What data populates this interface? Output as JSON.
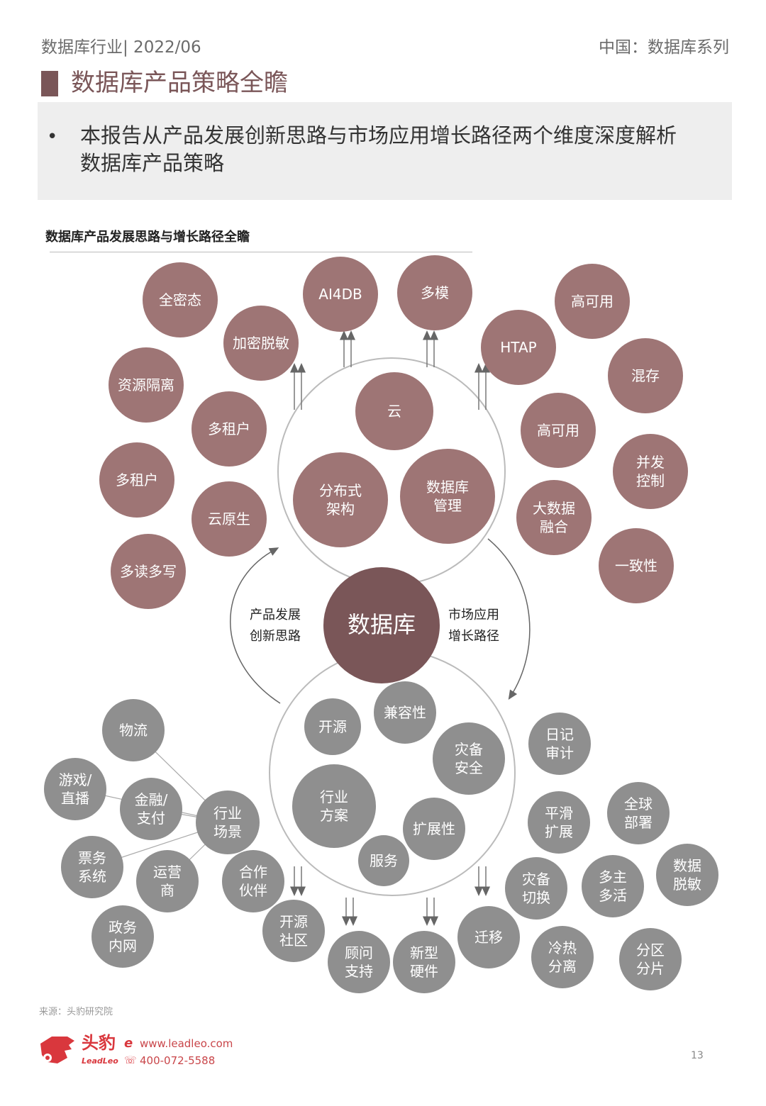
{
  "header": {
    "left": "数据库行业| 2022/06",
    "right": "中国：数据库系列"
  },
  "title": "数据库产品策略全瞻",
  "summary": {
    "bullet": "•",
    "text": "本报告从产品发展创新思路与市场应用增长路径两个维度深度解析数据库产品策略"
  },
  "diagram": {
    "title": "数据库产品发展思路与增长路径全瞻",
    "center": "数据库",
    "left_label": "产品发展\n创新思路",
    "right_label": "市场应用\n增长路径",
    "colors": {
      "product": "#9e7575",
      "center": "#7a5658",
      "market": "#8f8f8f"
    },
    "product_bubbles": [
      "全密态",
      "加密脱敏",
      "AI4DB",
      "多模",
      "高可用",
      "HTAP",
      "混存",
      "资源隔离",
      "多租户",
      "云",
      "高可用",
      "并发\n控制",
      "多租户",
      "云原生",
      "分布式\n架构",
      "数据库\n管理",
      "大数据\n融合",
      "一致性",
      "多读多写"
    ],
    "market_bubbles": [
      "兼容性",
      "开源",
      "灾备\n安全",
      "日记\n审计",
      "物流",
      "游戏/\n直播",
      "金融/\n支付",
      "行业\n场景",
      "行业\n方案",
      "扩展性",
      "平滑\n扩展",
      "全球\n部署",
      "票务\n系统",
      "运营\n商",
      "合作\n伙伴",
      "服务",
      "灾备\n切换",
      "多主\n多活",
      "数据\n脱敏",
      "政务\n内网",
      "开源\n社区",
      "迁移",
      "顾问\n支持",
      "新型\n硬件",
      "冷热\n分离",
      "分区\n分片"
    ]
  },
  "footer": {
    "source": "来源：头豹研究院",
    "logo_cn": "头豹",
    "logo_en": "LeadLeo",
    "website": "www.leadleo.com",
    "phone": "400-072-5588",
    "page": "13"
  }
}
